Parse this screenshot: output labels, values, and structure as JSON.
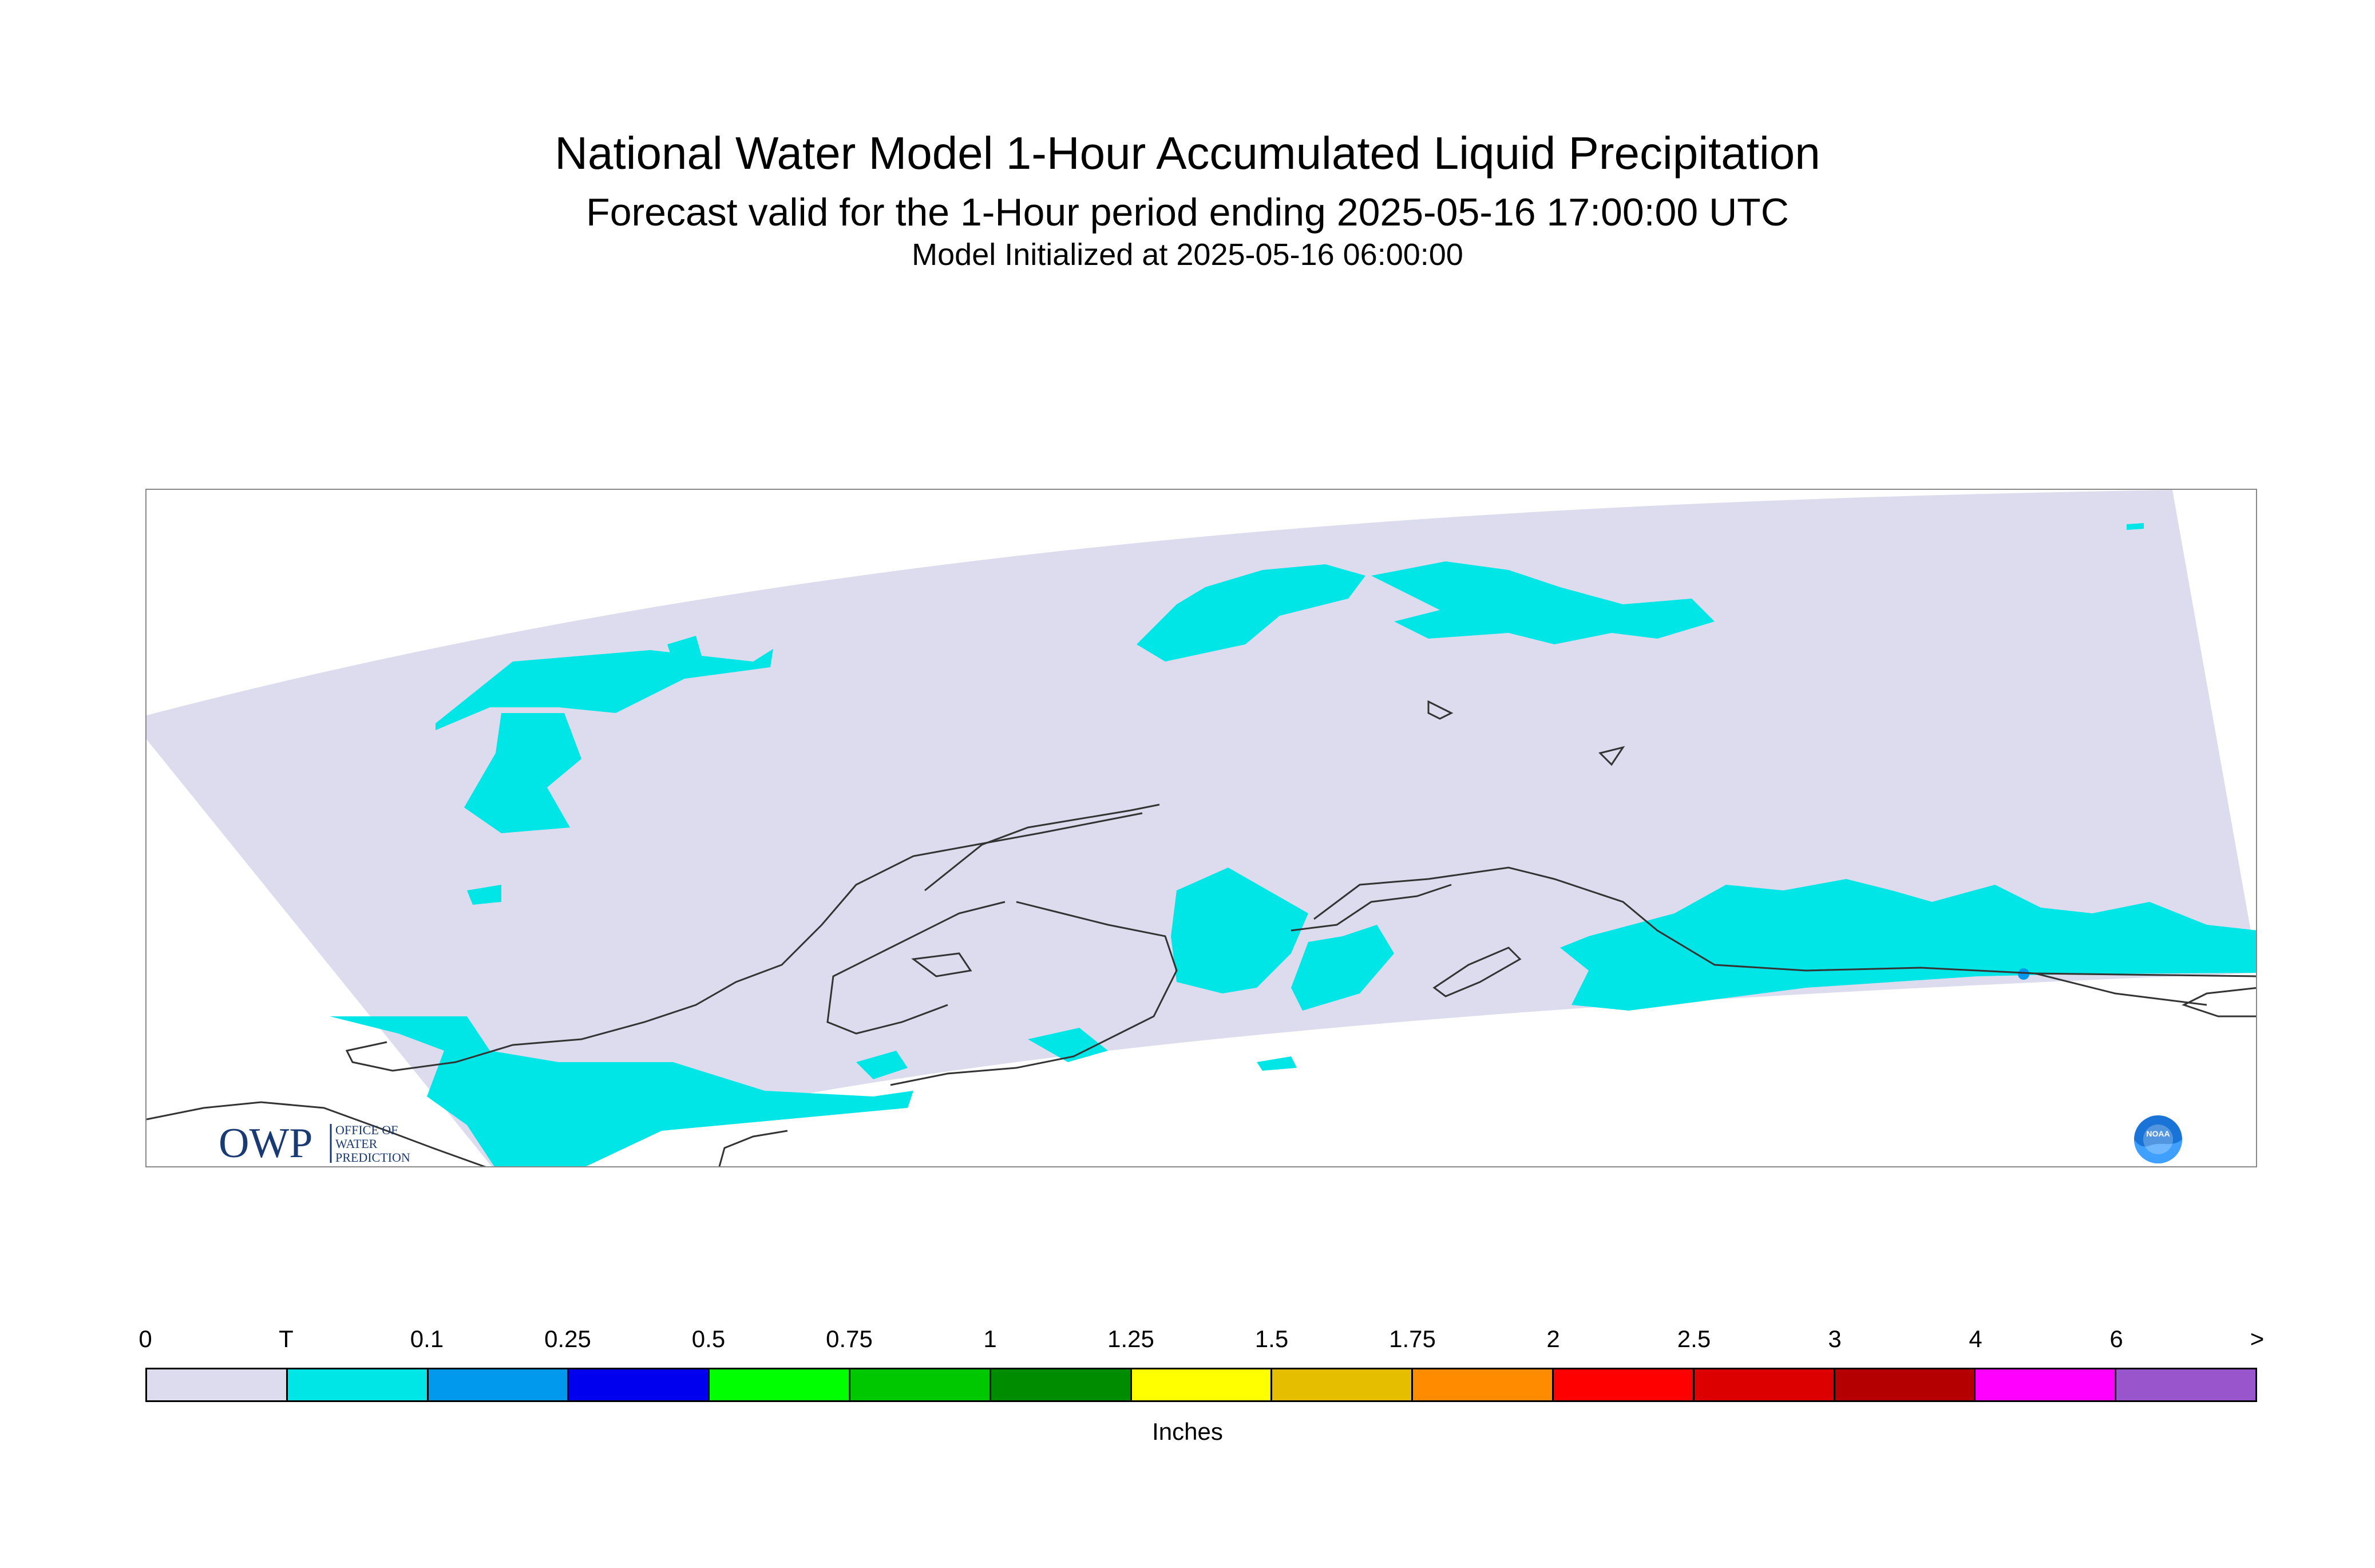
{
  "title": "National Water Model 1-Hour Accumulated Liquid Precipitation",
  "subtitle": "Forecast valid for the 1-Hour period ending 2025-05-16 17:00:00 UTC",
  "initialized": "Model Initialized at 2025-05-16 06:00:00",
  "owp_logo": {
    "mark": "OWP",
    "text_line1": "OFFICE OF",
    "text_line2": "WATER",
    "text_line3": "PREDICTION"
  },
  "noaa_logo": {
    "text": "NOAA"
  },
  "legend": {
    "units": "Inches",
    "tick_labels": [
      "0",
      "T",
      "0.1",
      "0.25",
      "0.5",
      "0.75",
      "1",
      "1.25",
      "1.5",
      "1.75",
      "2",
      "2.5",
      "3",
      "4",
      "6",
      ">"
    ],
    "colors": [
      "#dcdcee",
      "#00e5e5",
      "#0099ee",
      "#0000ee",
      "#00ff00",
      "#00c800",
      "#008c00",
      "#ffff00",
      "#e6be00",
      "#ff8c00",
      "#ff0000",
      "#dc0000",
      "#b40000",
      "#ff00ff",
      "#9955cc"
    ]
  },
  "map": {
    "domain_fill": "#dcdcee",
    "trace_precip_color": "#00e5e5",
    "light_precip_color": "#0099ee",
    "coastline_color": "#333333"
  }
}
